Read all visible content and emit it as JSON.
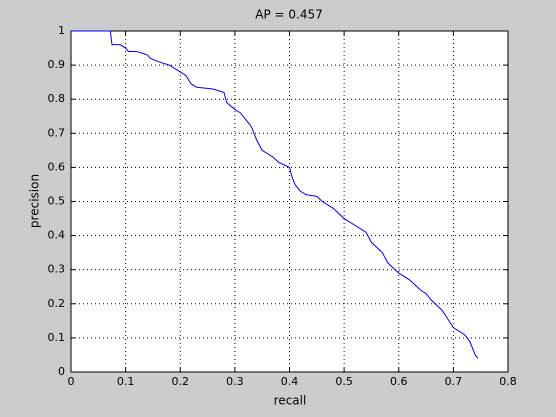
{
  "chart_data": {
    "type": "line",
    "title": "AP = 0.457",
    "x_label": "recall",
    "y_label": "precision",
    "x": [
      0,
      0.072,
      0.075,
      0.09,
      0.1,
      0.105,
      0.12,
      0.13,
      0.14,
      0.145,
      0.16,
      0.18,
      0.2,
      0.21,
      0.22,
      0.23,
      0.26,
      0.28,
      0.285,
      0.3,
      0.31,
      0.32,
      0.33,
      0.34,
      0.35,
      0.36,
      0.37,
      0.38,
      0.4,
      0.405,
      0.41,
      0.42,
      0.43,
      0.45,
      0.46,
      0.48,
      0.5,
      0.52,
      0.53,
      0.54,
      0.55,
      0.57,
      0.58,
      0.6,
      0.62,
      0.63,
      0.64,
      0.65,
      0.66,
      0.68,
      0.69,
      0.7,
      0.72,
      0.73,
      0.74,
      0.745
    ],
    "values": [
      1,
      1,
      0.96,
      0.96,
      0.95,
      0.94,
      0.94,
      0.935,
      0.93,
      0.92,
      0.91,
      0.9,
      0.88,
      0.87,
      0.845,
      0.835,
      0.83,
      0.82,
      0.79,
      0.77,
      0.76,
      0.74,
      0.72,
      0.68,
      0.65,
      0.64,
      0.63,
      0.615,
      0.6,
      0.57,
      0.55,
      0.53,
      0.52,
      0.515,
      0.5,
      0.48,
      0.45,
      0.43,
      0.42,
      0.41,
      0.38,
      0.35,
      0.32,
      0.29,
      0.27,
      0.255,
      0.24,
      0.23,
      0.21,
      0.18,
      0.155,
      0.13,
      0.11,
      0.09,
      0.05,
      0.04
    ],
    "color": "#0000ff",
    "xlim": [
      0,
      0.8
    ],
    "xticks": [
      0,
      0.1,
      0.2,
      0.3,
      0.4,
      0.5,
      0.6,
      0.7,
      0.8
    ],
    "ylim": [
      0,
      1
    ],
    "yticks": [
      0,
      0.1,
      0.2,
      0.3,
      0.4,
      0.5,
      0.6,
      0.7,
      0.8,
      0.9,
      1
    ],
    "grid": true
  }
}
